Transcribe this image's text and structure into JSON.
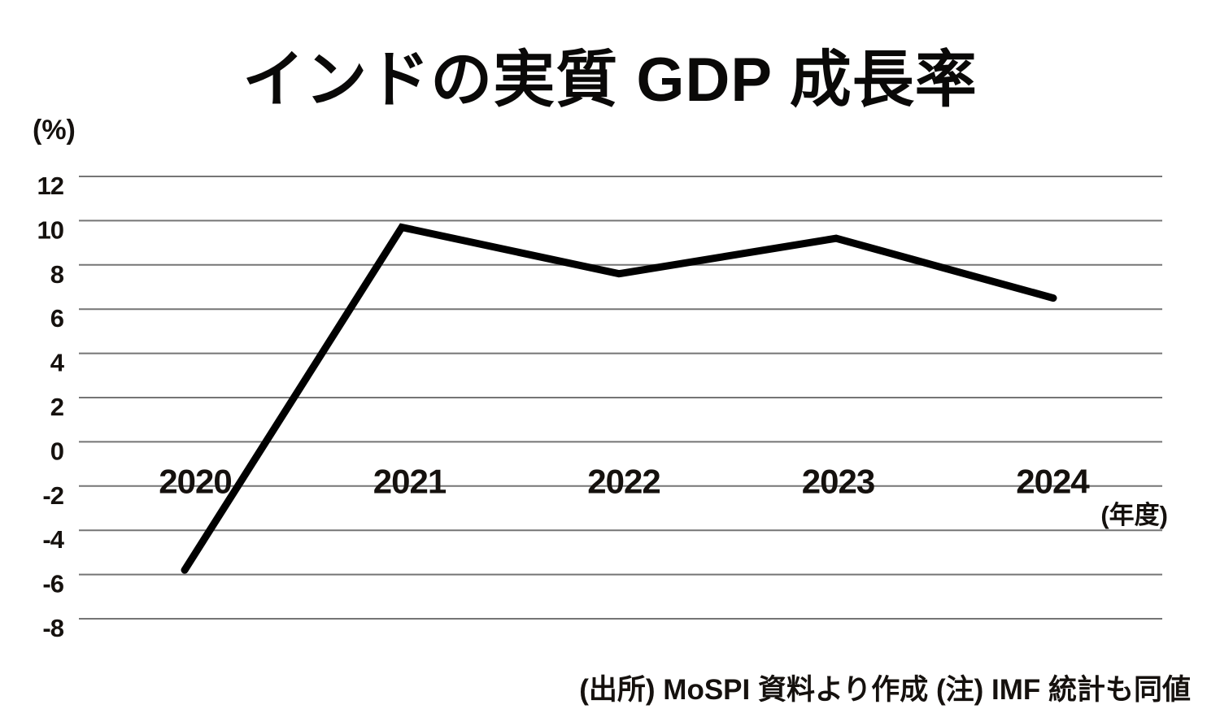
{
  "chart": {
    "title": "インドの実質 GDP 成長率",
    "y_axis_unit": "(%)",
    "x_axis_unit": "(年度)",
    "footnote": "(出所) MoSPI 資料より作成  (注) IMF 統計も同値"
  },
  "chart_data": {
    "type": "line",
    "title": "インドの実質 GDP 成長率",
    "categories": [
      "2020",
      "2021",
      "2022",
      "2023",
      "2024"
    ],
    "values": [
      -5.8,
      9.7,
      7.6,
      9.2,
      6.5
    ],
    "series_name": "インドの実質GDP成長率",
    "xlabel": "年度",
    "ylabel": "%",
    "yticks": [
      12,
      10,
      8,
      6,
      4,
      2,
      0,
      -2,
      -4,
      -6,
      -8
    ],
    "ylim": [
      -8,
      12
    ],
    "grid": true,
    "legend_position": "none",
    "line_color": "#000000",
    "grid_color": "#757575",
    "text_color": "#15110e",
    "background_color": "#ffffff"
  }
}
